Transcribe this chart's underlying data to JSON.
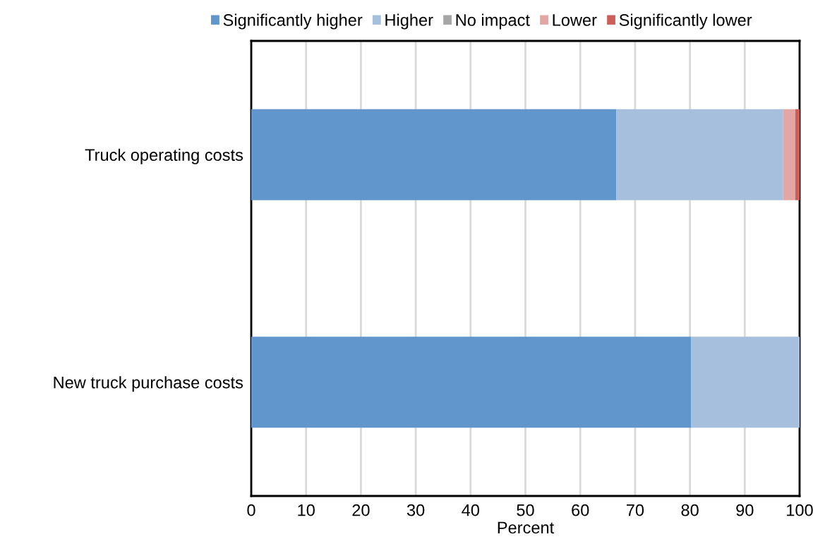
{
  "chart_data": {
    "type": "bar",
    "orientation": "horizontal",
    "stacked": true,
    "categories": [
      "Truck operating costs",
      "New truck purchase costs"
    ],
    "series": [
      {
        "name": "Significantly higher",
        "color": "#6096cb",
        "values": [
          66.6,
          80.2
        ]
      },
      {
        "name": "Higher",
        "color": "#a5bfdd",
        "values": [
          30.4,
          19.8
        ]
      },
      {
        "name": "No impact",
        "color": "#a5a5a5",
        "values": [
          0,
          0
        ]
      },
      {
        "name": "Lower",
        "color": "#e3a7a3",
        "values": [
          2.2,
          0
        ]
      },
      {
        "name": "Significantly lower",
        "color": "#cc5f5a",
        "values": [
          0.8,
          0
        ]
      }
    ],
    "xlabel": "Percent",
    "xlim": [
      0,
      100
    ],
    "xticks": [
      0,
      10,
      20,
      30,
      40,
      50,
      60,
      70,
      80,
      90,
      100
    ],
    "grid": "x",
    "legend": "top"
  }
}
